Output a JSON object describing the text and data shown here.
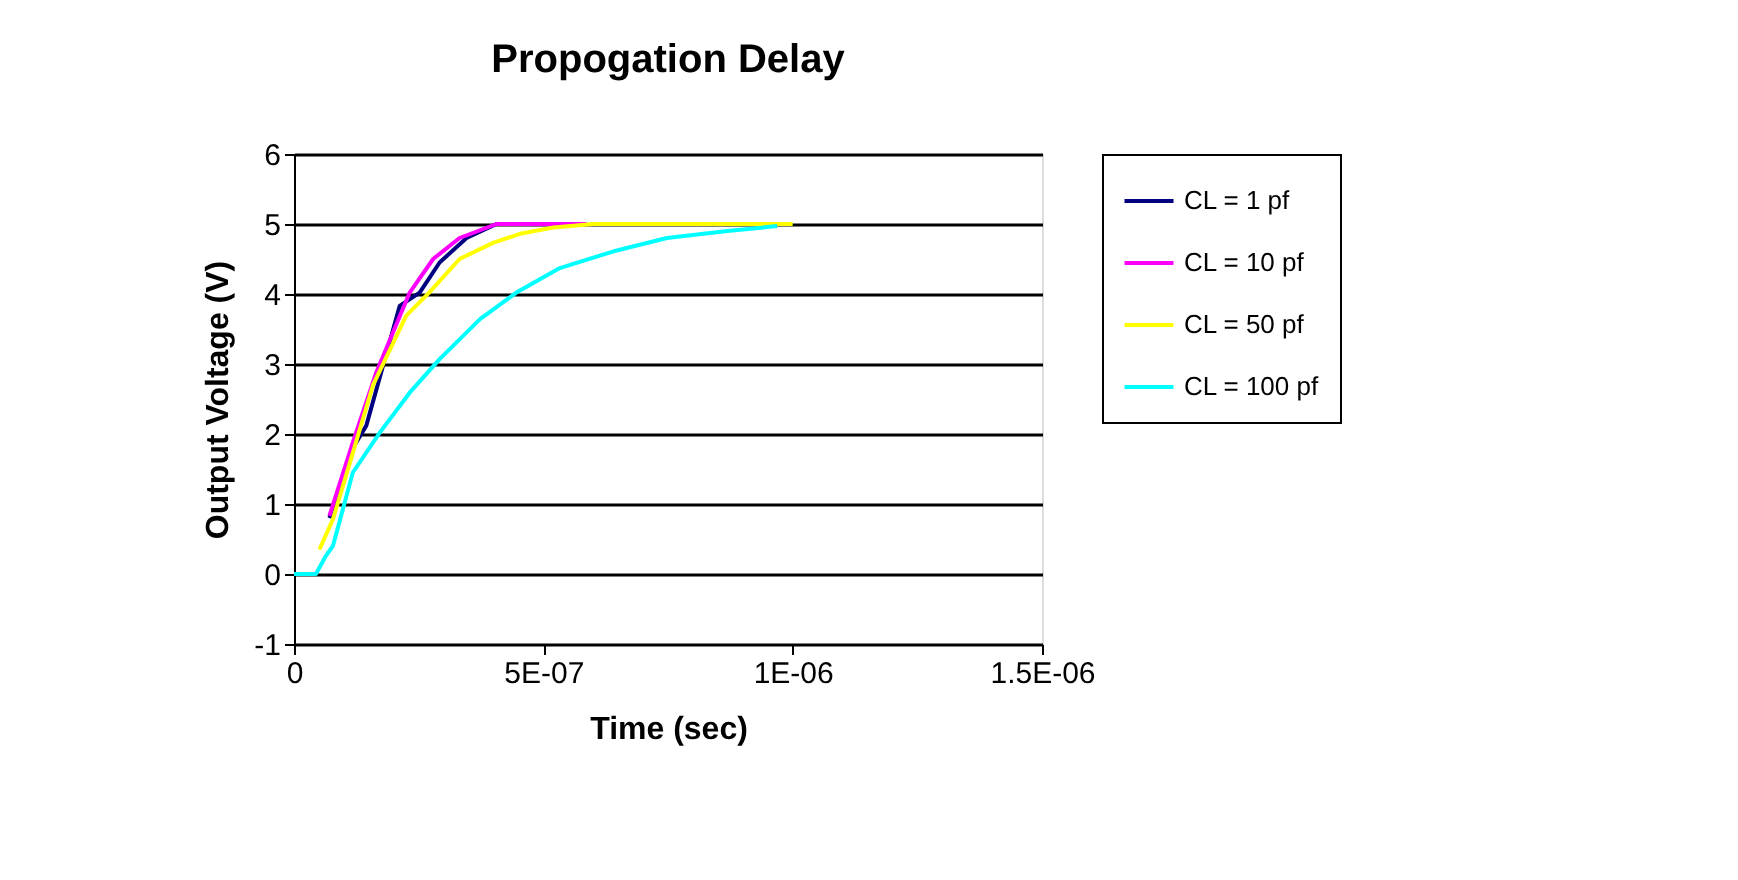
{
  "chart_data": {
    "type": "line",
    "title": "Propogation Delay",
    "xlabel": "Time (sec)",
    "ylabel": "Output Voltage (V)",
    "xlim": [
      0,
      1.5e-06
    ],
    "xticks": [
      0,
      {
        "value": 5e-07,
        "label": "5E-07"
      },
      {
        "value": 1e-06,
        "label": "1E-06"
      },
      {
        "value": 1.5e-06,
        "label": "1.5E-06"
      }
    ],
    "ylim": [
      -1,
      6
    ],
    "yticks": [
      -1,
      0,
      1,
      2,
      3,
      4,
      5,
      6
    ],
    "grid": "y",
    "legend": "right",
    "marker": "none",
    "line_style": "solid",
    "series": [
      {
        "name": "CL = 1 pf",
        "color": "#000080",
        "x": [
          7.1e-08,
          1.18e-07,
          1.45e-07,
          2.12e-07,
          2.52e-07,
          2.92e-07,
          3.46e-07,
          4.06e-07,
          5e-07
        ],
        "values": [
          0.8,
          1.8,
          2.12,
          3.83,
          4.02,
          4.45,
          4.8,
          5,
          5
        ]
      },
      {
        "name": "CL = 10 pf",
        "color": "#ff00ff",
        "x": [
          7.1e-08,
          1.18e-07,
          1.65e-07,
          2.32e-07,
          2.79e-07,
          3.32e-07,
          4.06e-07,
          5.87e-07
        ],
        "values": [
          0.83,
          1.88,
          2.88,
          4.02,
          4.5,
          4.8,
          5,
          5
        ]
      },
      {
        "name": "CL = 50 pf",
        "color": "#ffff00",
        "x": [
          5.1e-08,
          7.8e-08,
          1.18e-07,
          1.58e-07,
          2.25e-07,
          2.71e-07,
          3.32e-07,
          3.99e-07,
          4.53e-07,
          5.2e-07,
          6e-07,
          1e-06
        ],
        "values": [
          0.35,
          0.78,
          1.73,
          2.69,
          3.69,
          4.02,
          4.5,
          4.73,
          4.86,
          4.95,
          5,
          5
        ]
      },
      {
        "name": "CL = 100 pf",
        "color": "#00ffff",
        "x": [
          0,
          4.4e-08,
          6.4e-08,
          7.8e-08,
          1.18e-07,
          1.72e-07,
          2.32e-07,
          2.92e-07,
          3.73e-07,
          4.46e-07,
          5.33e-07,
          6.41e-07,
          7.48e-07,
          8.69e-07,
          9.69e-07
        ],
        "values": [
          0,
          0,
          0.26,
          0.4,
          1.45,
          2.02,
          2.59,
          3.07,
          3.64,
          4.02,
          4.37,
          4.61,
          4.8,
          4.9,
          4.97
        ]
      }
    ]
  }
}
